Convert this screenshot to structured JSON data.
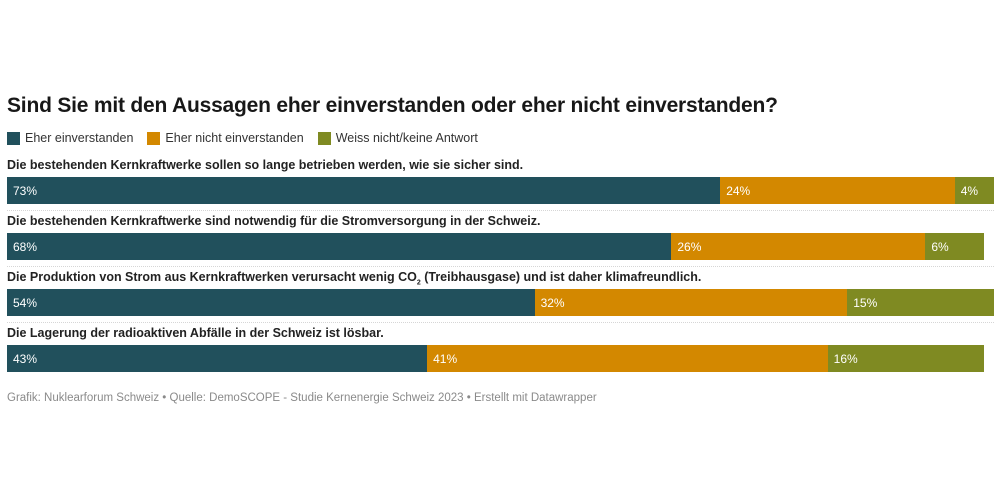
{
  "chart_data": {
    "type": "bar",
    "orientation": "horizontal-stacked",
    "title": "Sind Sie mit den Aussagen eher einverstanden oder eher nicht einverstanden?",
    "legend_position": "top-left",
    "series": [
      {
        "name": "Eher einverstanden",
        "color": "#21505c",
        "values": [
          73,
          68,
          54,
          43
        ]
      },
      {
        "name": "Eher nicht einverstanden",
        "color": "#d38800",
        "values": [
          24,
          26,
          32,
          41
        ]
      },
      {
        "name": "Weiss nicht/keine Antwort",
        "color": "#7f8a22",
        "values": [
          4,
          6,
          15,
          16
        ]
      }
    ],
    "categories": [
      "Die bestehenden Kernkraftwerke sollen so lange betrieben werden, wie sie sicher sind.",
      "Die bestehenden Kernkraftwerke sind notwendig für die Stromversorgung in der Schweiz.",
      "Die Produktion von Strom aus Kernkraftwerken verursacht wenig CO₂ (Treibhausgase) und ist daher klimafreundlich.",
      "Die Lagerung der radioaktiven Abfälle in der Schweiz ist lösbar."
    ],
    "value_suffix": "%",
    "xlim": [
      0,
      100
    ]
  },
  "labels": {
    "row0": "Die bestehenden Kernkraftwerke sollen so lange betrieben werden, wie sie sicher sind.",
    "row1": "Die bestehenden Kernkraftwerke sind notwendig für die Stromversorgung in der Schweiz.",
    "row2_pre": "Die Produktion von Strom aus Kernkraftwerken verursacht wenig CO",
    "row2_sub": "2",
    "row2_post": " (Treibhausgase) und ist daher klimafreundlich.",
    "row3": "Die Lagerung der radioaktiven Abfälle in der Schweiz ist lösbar."
  },
  "footer": "Grafik: Nuklearforum Schweiz • Quelle: DemoSCOPE - Studie Kernenergie Schweiz 2023 • Erstellt mit Datawrapper"
}
